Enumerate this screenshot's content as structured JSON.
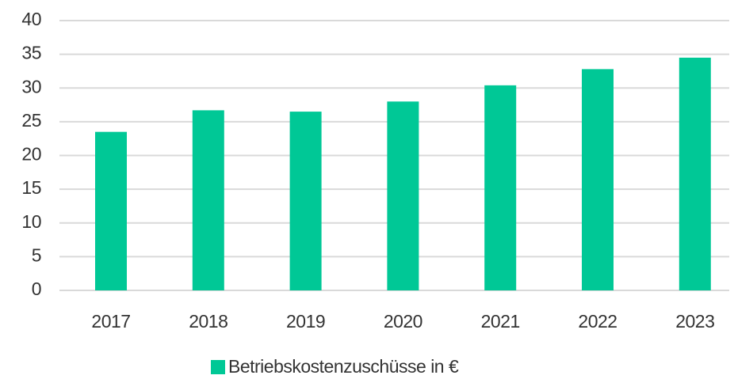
{
  "chart_data": {
    "type": "bar",
    "categories": [
      "2017",
      "2018",
      "2019",
      "2020",
      "2021",
      "2022",
      "2023"
    ],
    "series": [
      {
        "name": "Betriebskostenzuschüsse in €",
        "color": "#00c896",
        "values": [
          23.5,
          26.7,
          26.5,
          28,
          30.4,
          32.8,
          34.5
        ]
      }
    ],
    "ylim": [
      0,
      40
    ],
    "yticks": [
      0,
      5,
      10,
      15,
      20,
      25,
      30,
      35,
      40
    ],
    "grid": true,
    "legend": "bottom"
  }
}
